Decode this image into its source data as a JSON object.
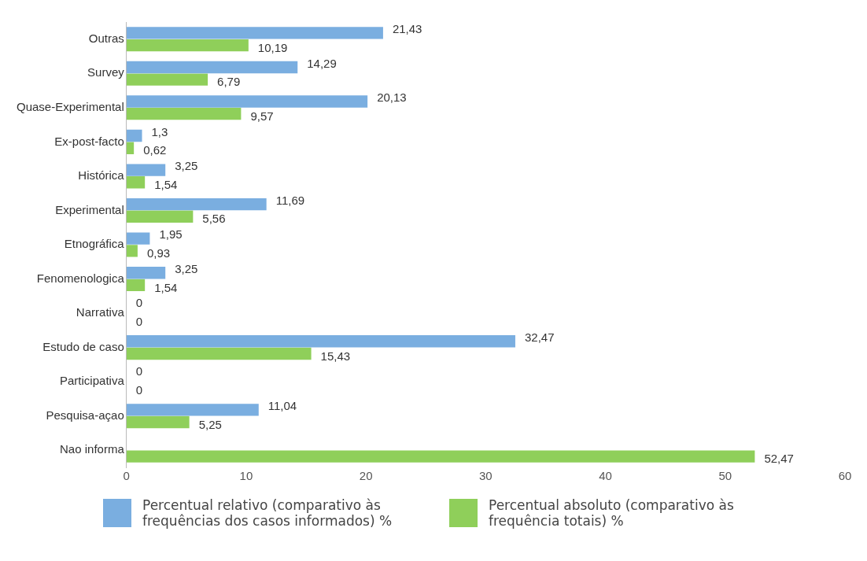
{
  "chart_data": {
    "type": "bar",
    "orientation": "horizontal",
    "categories": [
      "Outras",
      "Survey",
      "Quase-Experimental",
      "Ex-post-facto",
      "Histórica",
      "Experimental",
      "Etnográfica",
      "Fenomenologica",
      "Narrativa",
      "Estudo de caso",
      "Participativa",
      "Pesquisa-açao",
      "Nao informa"
    ],
    "series": [
      {
        "name": "Percentual relativo (comparativo às frequências dos casos informados) %",
        "color": "#7aaee0",
        "values": [
          21.43,
          14.29,
          20.13,
          1.3,
          3.25,
          11.69,
          1.95,
          3.25,
          0,
          32.47,
          0,
          11.04,
          null
        ],
        "value_labels": [
          "21,43",
          "14,29",
          "20,13",
          "1,3",
          "3,25",
          "11,69",
          "1,95",
          "3,25",
          "0",
          "32,47",
          "0",
          "11,04",
          null
        ]
      },
      {
        "name": "Percentual absoluto (comparativo às frequência totais) %",
        "color": "#8fcf5a",
        "values": [
          10.19,
          6.79,
          9.57,
          0.62,
          1.54,
          5.56,
          0.93,
          1.54,
          0,
          15.43,
          0,
          5.25,
          52.47
        ],
        "value_labels": [
          "10,19",
          "6,79",
          "9,57",
          "0,62",
          "1,54",
          "5,56",
          "0,93",
          "1,54",
          "0",
          "15,43",
          "0",
          "5,25",
          "52,47"
        ]
      }
    ],
    "xlim": [
      0,
      60
    ],
    "xticks": [
      0,
      10,
      20,
      30,
      40,
      50,
      60
    ],
    "grid": false,
    "legend": "bottom"
  }
}
